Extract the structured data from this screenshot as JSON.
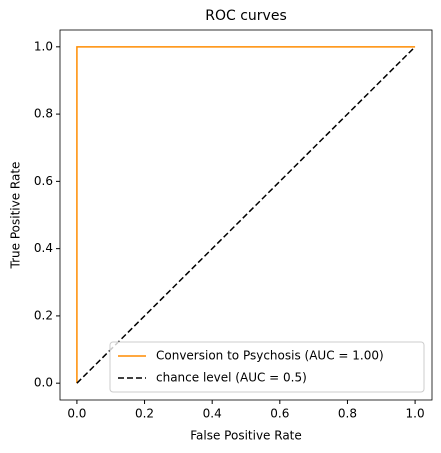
{
  "chart_data": {
    "type": "line",
    "title": "ROC curves",
    "x_label": "False Positive Rate",
    "y_label": "True Positive Rate",
    "xlim": [
      -0.05,
      1.05
    ],
    "ylim": [
      -0.05,
      1.05
    ],
    "xticks": [
      {
        "value": 0,
        "label": "0.0"
      },
      {
        "value": 0.2,
        "label": "0.2"
      },
      {
        "value": 0.4,
        "label": "0.4"
      },
      {
        "value": 0.6,
        "label": "0.6"
      },
      {
        "value": 0.8,
        "label": "0.8"
      },
      {
        "value": 1,
        "label": "1.0"
      }
    ],
    "yticks": [
      {
        "value": 0,
        "label": "0.0"
      },
      {
        "value": 0.2,
        "label": "0.2"
      },
      {
        "value": 0.4,
        "label": "0.4"
      },
      {
        "value": 0.6,
        "label": "0.6"
      },
      {
        "value": 0.8,
        "label": "0.8"
      },
      {
        "value": 1,
        "label": "1.0"
      }
    ],
    "grid": false,
    "legend": "lower right",
    "series": [
      {
        "name": "Conversion to Psychosis (AUC = 1.00)",
        "color": "#ff8c00",
        "linestyle": "solid",
        "x": [
          0,
          0,
          1
        ],
        "values": [
          0,
          1,
          1
        ]
      },
      {
        "name": "chance level (AUC = 0.5)",
        "color": "#000000",
        "linestyle": "dashed",
        "x": [
          0,
          1
        ],
        "values": [
          0,
          1
        ]
      }
    ]
  }
}
